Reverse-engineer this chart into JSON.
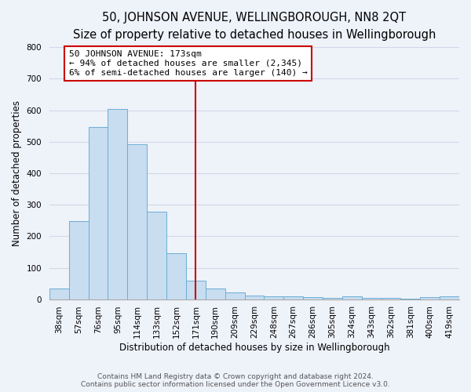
{
  "title": "50, JOHNSON AVENUE, WELLINGBOROUGH, NN8 2QT",
  "subtitle": "Size of property relative to detached houses in Wellingborough",
  "xlabel": "Distribution of detached houses by size in Wellingborough",
  "ylabel": "Number of detached properties",
  "bar_labels": [
    "38sqm",
    "57sqm",
    "76sqm",
    "95sqm",
    "114sqm",
    "133sqm",
    "152sqm",
    "171sqm",
    "190sqm",
    "209sqm",
    "229sqm",
    "248sqm",
    "267sqm",
    "286sqm",
    "305sqm",
    "324sqm",
    "343sqm",
    "362sqm",
    "381sqm",
    "400sqm",
    "419sqm"
  ],
  "bar_values": [
    35,
    248,
    548,
    605,
    493,
    278,
    145,
    60,
    33,
    22,
    12,
    8,
    10,
    6,
    5,
    8,
    5,
    3,
    2,
    7,
    8
  ],
  "bar_color": "#c8ddf0",
  "bar_edge_color": "#6baed6",
  "vline_x_index": 7,
  "vline_color": "#cc0000",
  "annotation_title": "50 JOHNSON AVENUE: 173sqm",
  "annotation_line1": "← 94% of detached houses are smaller (2,345)",
  "annotation_line2": "6% of semi-detached houses are larger (140) →",
  "annotation_box_color": "#ffffff",
  "annotation_box_edge": "#cc0000",
  "ylim": [
    0,
    800
  ],
  "yticks": [
    0,
    100,
    200,
    300,
    400,
    500,
    600,
    700,
    800
  ],
  "footer_line1": "Contains HM Land Registry data © Crown copyright and database right 2024.",
  "footer_line2": "Contains public sector information licensed under the Open Government Licence v3.0.",
  "bg_color": "#eef2f9",
  "grid_color": "#d0d8e8",
  "title_fontsize": 10.5,
  "subtitle_fontsize": 9,
  "axis_label_fontsize": 8.5,
  "tick_fontsize": 7.5,
  "annotation_fontsize": 8,
  "footer_fontsize": 6.5
}
